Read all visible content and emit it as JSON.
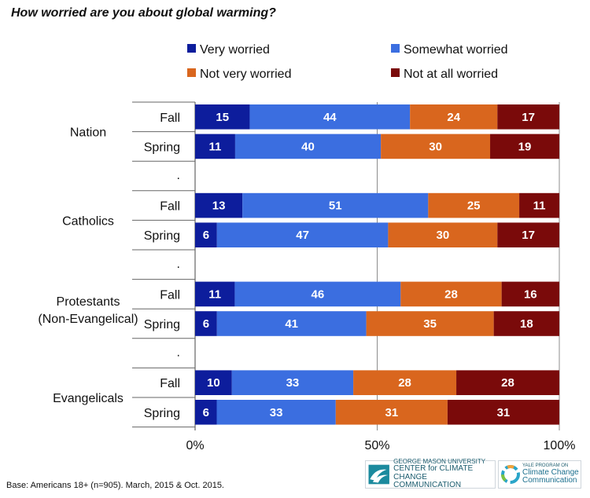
{
  "title": "How worried are you about global warming?",
  "footnote": "Base: Americans 18+ (n=905). March, 2015 & Oct. 2015.",
  "logos": {
    "gmu": {
      "line1": "GEORGE MASON UNIVERSITY",
      "line2": "CENTER for CLIMATE CHANGE",
      "line3": "COMMUNICATION"
    },
    "yale": {
      "line1": "YALE PROGRAM ON",
      "line2": "Climate Change",
      "line3": "Communication"
    }
  },
  "chart_data": {
    "type": "bar",
    "orientation": "horizontal",
    "stacked": true,
    "title": "How worried are you about global warming?",
    "xlim": [
      0,
      100
    ],
    "x_ticks": [
      "0%",
      "50%",
      "100%"
    ],
    "grid": true,
    "legend_position": "top",
    "legend": [
      {
        "name": "Very worried",
        "color": "#0d1d9c"
      },
      {
        "name": "Somewhat worried",
        "color": "#3b6ee0"
      },
      {
        "name": "Not very worried",
        "color": "#d9661e"
      },
      {
        "name": "Not at all worried",
        "color": "#7a0a0a"
      }
    ],
    "groups": [
      {
        "name": "Nation",
        "rows": [
          {
            "label": "Fall",
            "values": [
              15,
              44,
              24,
              17
            ]
          },
          {
            "label": "Spring",
            "values": [
              11,
              40,
              30,
              19
            ]
          }
        ]
      },
      {
        "name": "Catholics",
        "rows": [
          {
            "label": "Fall",
            "values": [
              13,
              51,
              25,
              11
            ]
          },
          {
            "label": "Spring",
            "values": [
              6,
              47,
              30,
              17
            ]
          }
        ]
      },
      {
        "name": "Protestants\n(Non-Evangelical)",
        "rows": [
          {
            "label": "Fall",
            "values": [
              11,
              46,
              28,
              16
            ]
          },
          {
            "label": "Spring",
            "values": [
              6,
              41,
              35,
              18
            ]
          }
        ]
      },
      {
        "name": "Evangelicals",
        "rows": [
          {
            "label": "Fall",
            "values": [
              10,
              33,
              28,
              28
            ]
          },
          {
            "label": "Spring",
            "values": [
              6,
              33,
              31,
              31
            ]
          }
        ]
      }
    ],
    "separator": "."
  }
}
